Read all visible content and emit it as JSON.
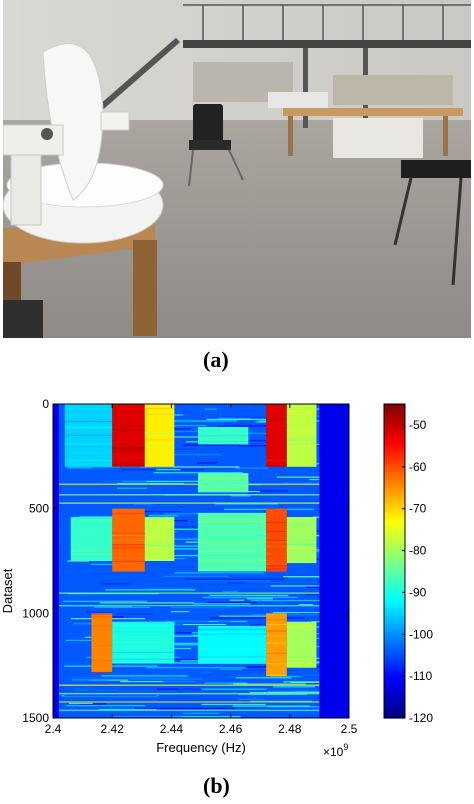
{
  "labels": {
    "a": "(a)",
    "b": "(b)"
  },
  "chart_data": {
    "type": "heatmap",
    "xlabel": "Frequency (Hz)",
    "ylabel": "Dataset",
    "x_multiplier": "×10",
    "x_multiplier_exp": "9",
    "xlim": [
      2.4,
      2.5
    ],
    "ylim": [
      0,
      1500
    ],
    "x_ticks": [
      "2.4",
      "2.42",
      "2.44",
      "2.46",
      "2.48",
      "2.5"
    ],
    "y_ticks": [
      "0",
      "500",
      "1000",
      "1500"
    ],
    "colorbar": {
      "min": -120,
      "max": -45,
      "ticks": [
        "-50",
        "-60",
        "-70",
        "-80",
        "-90",
        "-100",
        "-110",
        "-120"
      ]
    },
    "active_band": [
      2.402,
      2.49
    ],
    "regions": [
      {
        "f0": 2.404,
        "f1": 2.42,
        "d0": 0,
        "d1": 300,
        "level": -95
      },
      {
        "f0": 2.42,
        "f1": 2.431,
        "d0": 0,
        "d1": 300,
        "level": -52
      },
      {
        "f0": 2.431,
        "f1": 2.441,
        "d0": 0,
        "d1": 300,
        "level": -72
      },
      {
        "f0": 2.449,
        "f1": 2.466,
        "d0": 110,
        "d1": 190,
        "level": -88
      },
      {
        "f0": 2.472,
        "f1": 2.479,
        "d0": 0,
        "d1": 300,
        "level": -52
      },
      {
        "f0": 2.479,
        "f1": 2.489,
        "d0": 0,
        "d1": 300,
        "level": -78
      },
      {
        "f0": 2.449,
        "f1": 2.466,
        "d0": 330,
        "d1": 420,
        "level": -85
      },
      {
        "f0": 2.42,
        "f1": 2.431,
        "d0": 500,
        "d1": 800,
        "level": -62
      },
      {
        "f0": 2.406,
        "f1": 2.42,
        "d0": 540,
        "d1": 750,
        "level": -88
      },
      {
        "f0": 2.431,
        "f1": 2.441,
        "d0": 540,
        "d1": 750,
        "level": -78
      },
      {
        "f0": 2.449,
        "f1": 2.472,
        "d0": 520,
        "d1": 800,
        "level": -86
      },
      {
        "f0": 2.472,
        "f1": 2.479,
        "d0": 500,
        "d1": 800,
        "level": -60
      },
      {
        "f0": 2.479,
        "f1": 2.489,
        "d0": 540,
        "d1": 760,
        "level": -80
      },
      {
        "f0": 2.413,
        "f1": 2.42,
        "d0": 1000,
        "d1": 1280,
        "level": -64
      },
      {
        "f0": 2.42,
        "f1": 2.441,
        "d0": 1040,
        "d1": 1240,
        "level": -90
      },
      {
        "f0": 2.472,
        "f1": 2.479,
        "d0": 1000,
        "d1": 1300,
        "level": -66
      },
      {
        "f0": 2.479,
        "f1": 2.489,
        "d0": 1040,
        "d1": 1260,
        "level": -80
      },
      {
        "f0": 2.449,
        "f1": 2.472,
        "d0": 1060,
        "d1": 1240,
        "level": -92
      }
    ],
    "noise_rows": [
      {
        "d": 380,
        "level": -72
      },
      {
        "d": 430,
        "level": -80
      },
      {
        "d": 470,
        "level": -76
      },
      {
        "d": 900,
        "level": -82
      },
      {
        "d": 960,
        "level": -86
      },
      {
        "d": 1340,
        "level": -74
      },
      {
        "d": 1380,
        "level": -80
      },
      {
        "d": 1420,
        "level": -70
      },
      {
        "d": 1460,
        "level": -84
      }
    ]
  }
}
